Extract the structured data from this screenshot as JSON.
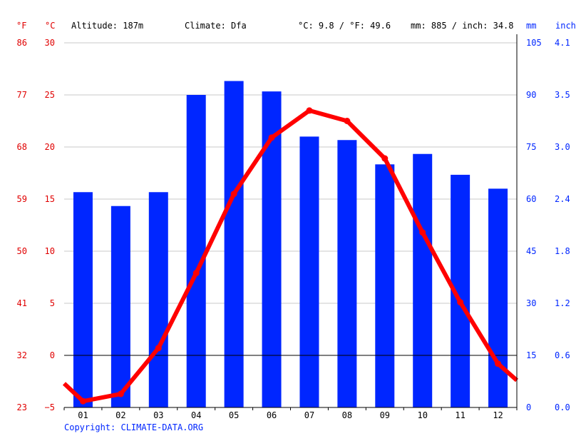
{
  "header": {
    "unit_f": "°F",
    "unit_c": "°C",
    "altitude": "Altitude: 187m",
    "climate": "Climate: Dfa",
    "temp_avg": "°C: 9.8 / °F: 49.6",
    "precip_avg": "mm: 885 / inch: 34.8",
    "unit_mm": "mm",
    "unit_inch": "inch"
  },
  "footer": {
    "copyright": "Copyright: CLIMATE-DATA.ORG"
  },
  "axes": {
    "fahrenheit_ticks": [
      "86",
      "77",
      "68",
      "59",
      "50",
      "41",
      "32",
      "23"
    ],
    "celsius_ticks": [
      "30",
      "25",
      "20",
      "15",
      "10",
      "5",
      "0",
      "−5"
    ],
    "mm_ticks": [
      "105",
      "90",
      "75",
      "60",
      "45",
      "30",
      "15",
      "0"
    ],
    "inch_ticks": [
      "4.1",
      "3.5",
      "3.0",
      "2.4",
      "1.8",
      "1.2",
      "0.6",
      "0.0"
    ]
  },
  "colors": {
    "temperature": "#ff0000",
    "precipitation": "#0026ff",
    "red_text": "#e00000",
    "blue_text": "#0026ff"
  },
  "chart_data": {
    "type": "bar",
    "categories": [
      "01",
      "02",
      "03",
      "04",
      "05",
      "06",
      "07",
      "08",
      "09",
      "10",
      "11",
      "12"
    ],
    "series": [
      {
        "values": [
          62,
          58,
          62,
          90,
          94,
          91,
          78,
          77,
          70,
          73,
          67,
          63
        ],
        "axis": "mm",
        "render": "bar"
      },
      {
        "values": [
          -4.4,
          -3.7,
          0.7,
          7.9,
          15.5,
          20.9,
          23.5,
          22.5,
          18.9,
          11.8,
          5.1,
          -0.8
        ],
        "axis": "celsius",
        "render": "line"
      }
    ],
    "temperature_edge_values": [
      -2.7,
      -2.4
    ],
    "celsius_range": [
      -5,
      30
    ],
    "mm_range": [
      0,
      105
    ],
    "grid": true
  }
}
